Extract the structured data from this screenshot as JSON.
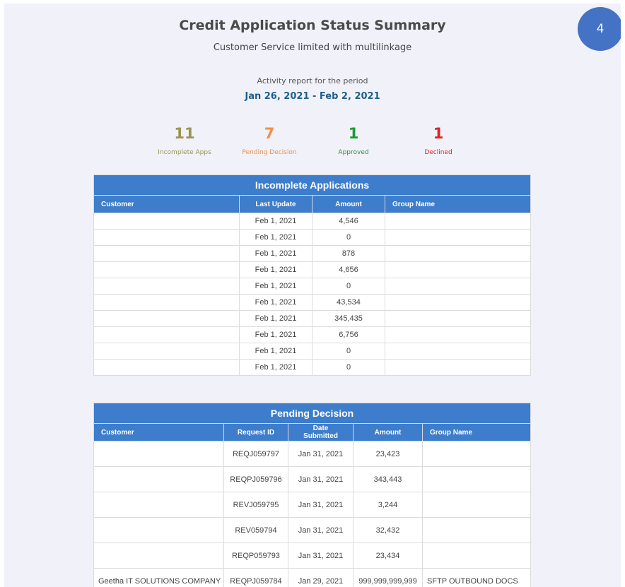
{
  "report": {
    "badge": "4",
    "title": "Credit Application Status Summary",
    "subtitle": "Customer Service limited with multilinkage",
    "period_label": "Activity report for the period",
    "period": "Jan 26, 2021 - Feb 2, 2021"
  },
  "stats": [
    {
      "value": "11",
      "label": "Incomplete Apps",
      "color": "#9c9450"
    },
    {
      "value": "7",
      "label": "Pending Decision",
      "color": "#f0904a"
    },
    {
      "value": "1",
      "label": "Approved",
      "color": "#1e9a2e"
    },
    {
      "value": "1",
      "label": "Declined",
      "color": "#e02020"
    }
  ],
  "incomplete": {
    "title": "Incomplete Applications",
    "columns": [
      "Customer",
      "Last Update",
      "Amount",
      "Group Name"
    ],
    "rows": [
      [
        "",
        "Feb 1, 2021",
        "4,546",
        ""
      ],
      [
        "",
        "Feb 1, 2021",
        "0",
        ""
      ],
      [
        "",
        "Feb 1, 2021",
        "878",
        ""
      ],
      [
        "",
        "Feb 1, 2021",
        "4,656",
        ""
      ],
      [
        "",
        "Feb 1, 2021",
        "0",
        ""
      ],
      [
        "",
        "Feb 1, 2021",
        "43,534",
        ""
      ],
      [
        "",
        "Feb 1, 2021",
        "345,435",
        ""
      ],
      [
        "",
        "Feb 1, 2021",
        "6,756",
        ""
      ],
      [
        "",
        "Feb 1, 2021",
        "0",
        ""
      ],
      [
        "",
        "Feb 1, 2021",
        "0",
        ""
      ]
    ]
  },
  "pending": {
    "title": "Pending Decision",
    "columns": [
      "Customer",
      "Request ID",
      "Date Submitted",
      "Amount",
      "Group Name"
    ],
    "rows": [
      [
        "",
        "REQJ059797",
        "Jan 31, 2021",
        "23,423",
        ""
      ],
      [
        "",
        "REQPJ059796",
        "Jan 31, 2021",
        "343,443",
        ""
      ],
      [
        "",
        "REVJ059795",
        "Jan 31, 2021",
        "3,244",
        ""
      ],
      [
        "",
        "REV059794",
        "Jan 31, 2021",
        "32,432",
        ""
      ],
      [
        "",
        "REQP059793",
        "Jan 31, 2021",
        "23,434",
        ""
      ],
      [
        "Geetha IT SOLUTIONS COMPANY",
        "REQPJ059784",
        "Jan 29, 2021",
        "999,999,999,999",
        "SFTP OUTBOUND DOCS"
      ]
    ]
  }
}
